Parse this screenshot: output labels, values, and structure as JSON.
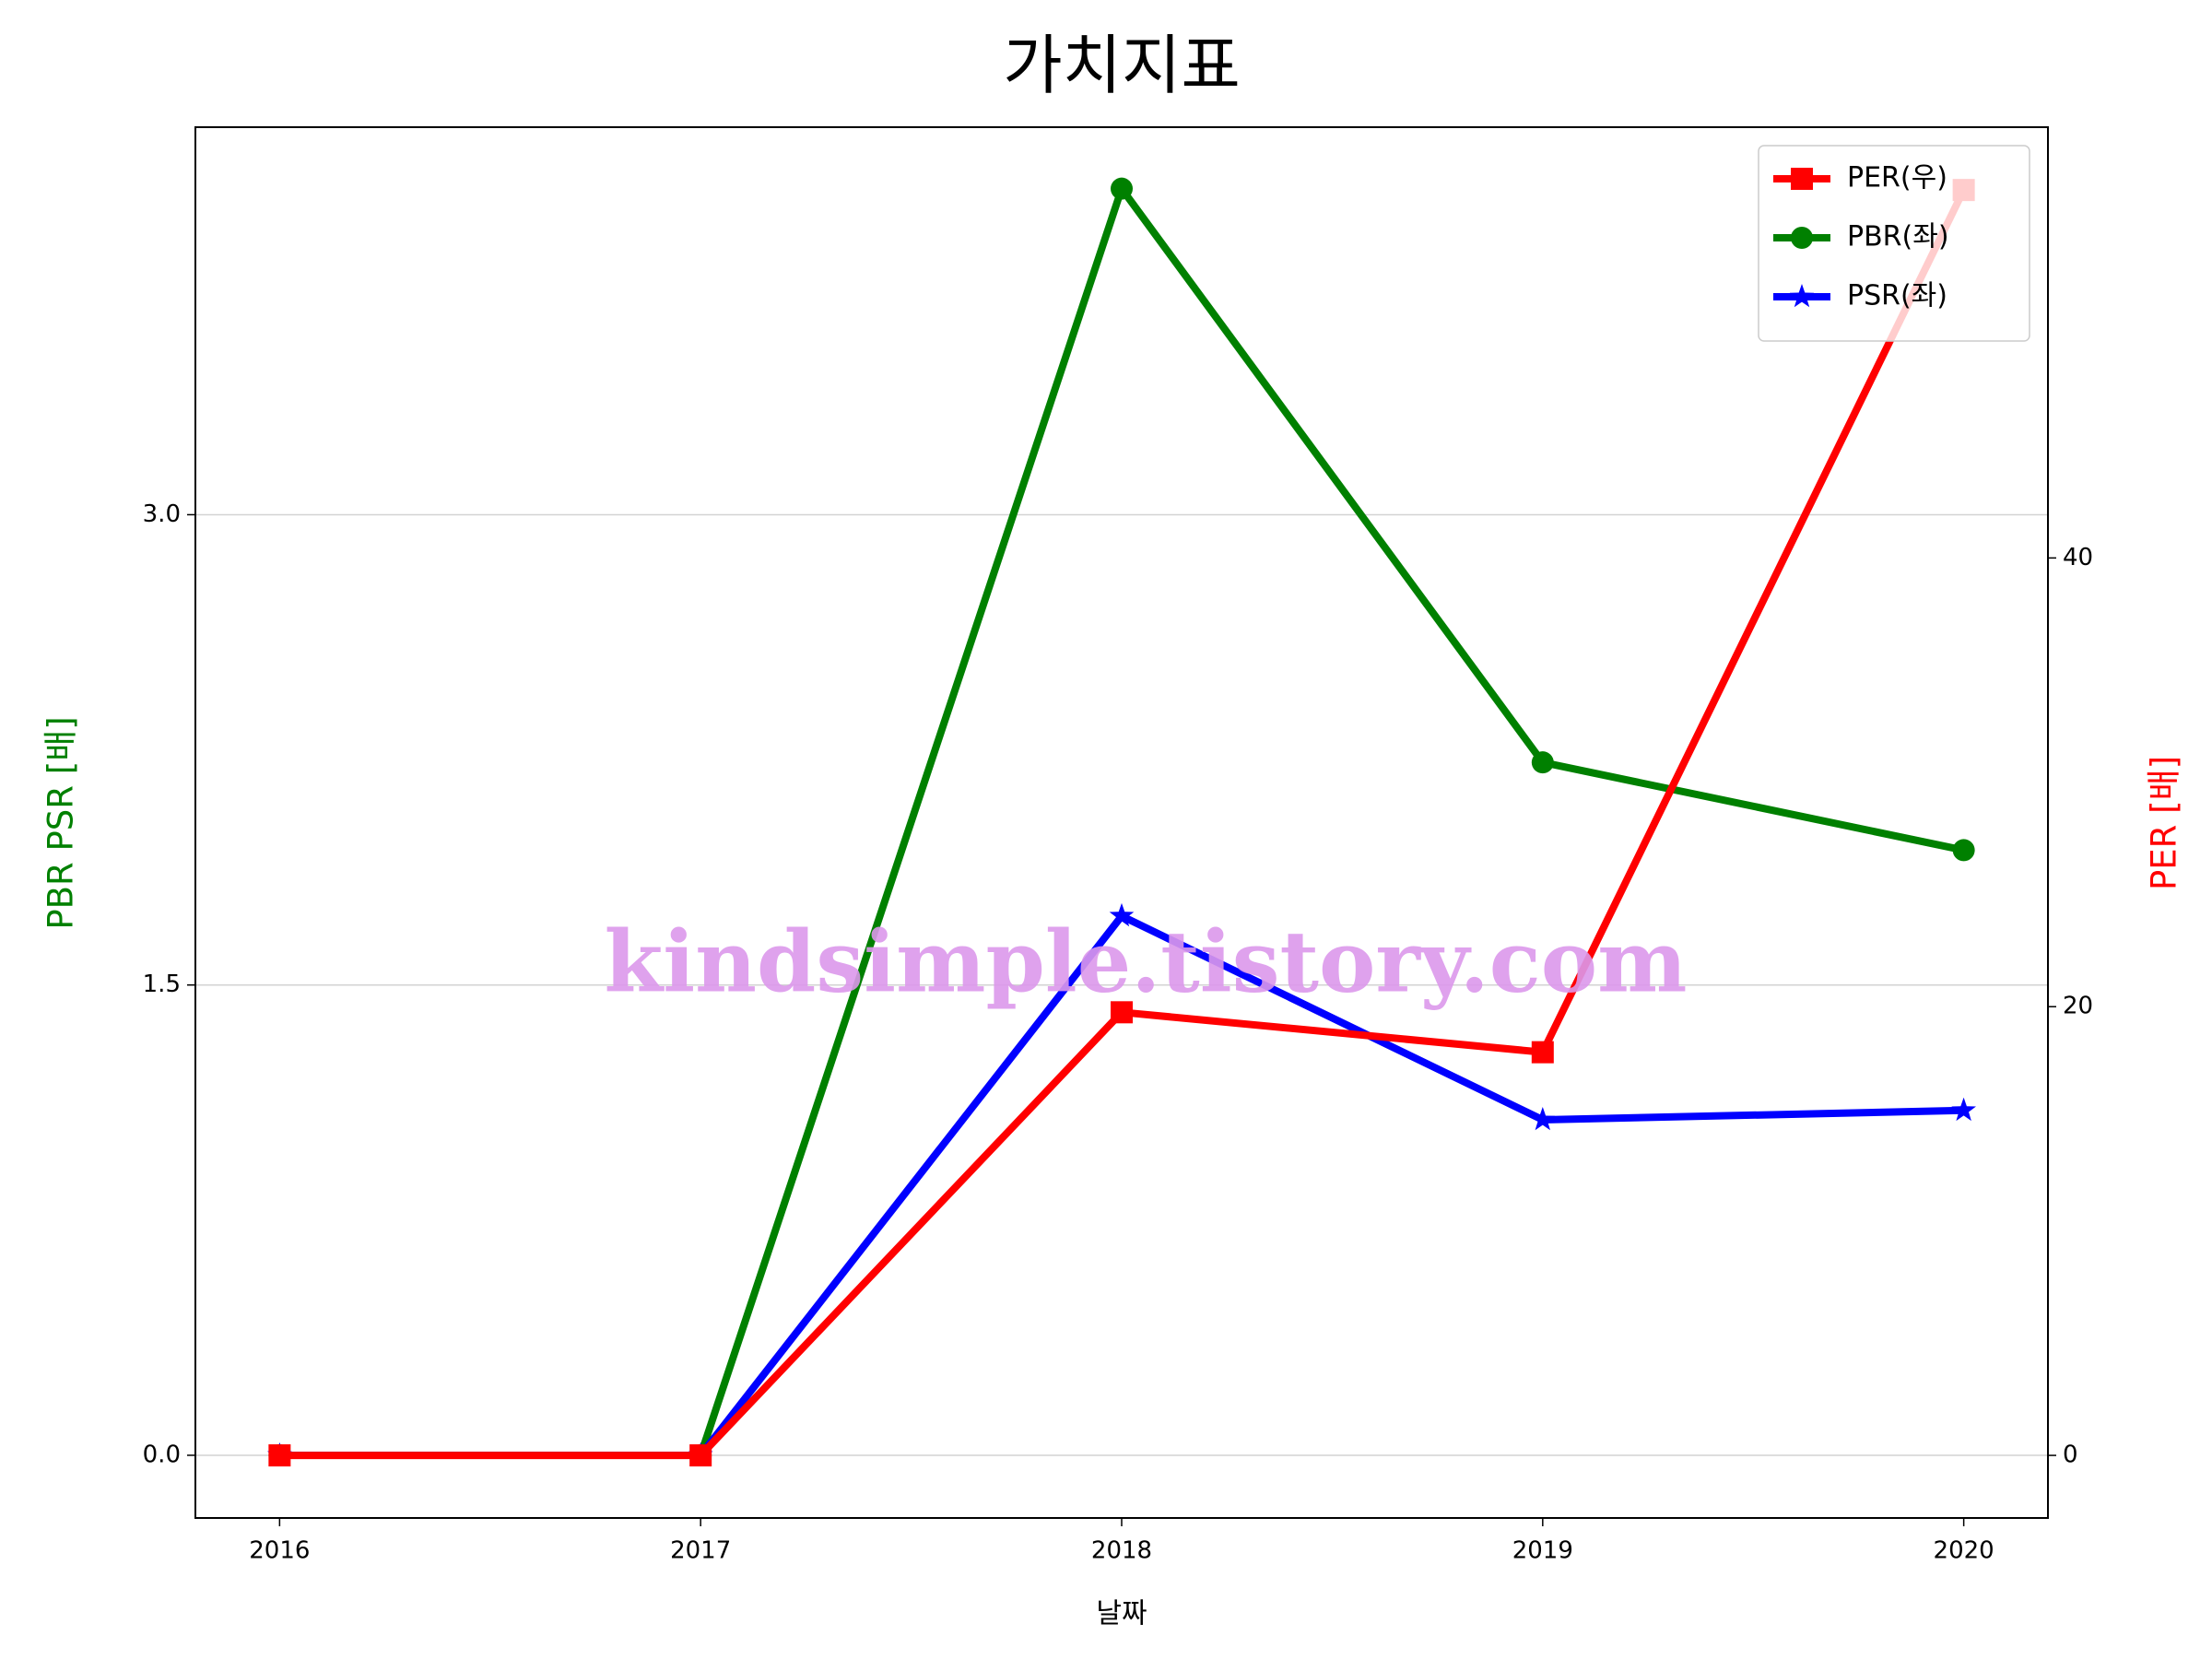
{
  "chart_data": {
    "type": "line",
    "title": "가치지표",
    "xlabel": "날짜",
    "ylabel": "PBR PSR [배]",
    "y2label": "PER [배]",
    "watermark": "kindsimple.tistory.com",
    "x": [
      2016,
      2017,
      2018,
      2019,
      2020
    ],
    "xlim": [
      2015.8,
      2020.2
    ],
    "xticks": [
      2016,
      2017,
      2018,
      2019,
      2020
    ],
    "ylim": [
      -0.2,
      4.236
    ],
    "yticks": [
      {
        "value": 0,
        "label": "0.0"
      },
      1.5,
      {
        "value": 3,
        "label": "3.0"
      }
    ],
    "y2lim": [
      -2.79,
      59.2
    ],
    "y2ticks": [
      0,
      20,
      40
    ],
    "grid": true,
    "legend": "upper right",
    "series": [
      {
        "name": "PER(우)",
        "color": "#ff0000",
        "marker": "square",
        "axis": "y2",
        "values": [
          0,
          0,
          19.75,
          17.97,
          56.4
        ]
      },
      {
        "name": "PBR(좌)",
        "color": "#008000",
        "marker": "circle",
        "values": [
          0,
          0,
          4.04,
          2.21,
          1.93
        ]
      },
      {
        "name": "PSR(좌)",
        "color": "#0000ff",
        "marker": "star",
        "values": [
          0,
          0,
          1.72,
          1.07,
          1.1
        ]
      }
    ]
  }
}
